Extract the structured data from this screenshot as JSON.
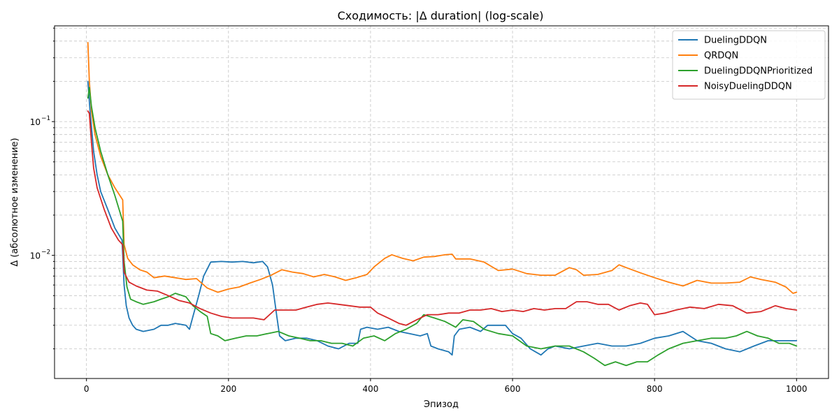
{
  "chart_data": {
    "type": "line",
    "title": "Сходимость: |Δ duration| (log-scale)",
    "xlabel": "Эпизод",
    "ylabel": "Δ (абсолютное изменение)",
    "xlim": [
      -45,
      1045
    ],
    "ylim": [
      0.0012,
      0.52
    ],
    "yscale": "log",
    "grid": true,
    "legend": "top-right",
    "x_ticks": [
      0,
      200,
      400,
      600,
      800,
      1000
    ],
    "y_major_ticks": [
      {
        "value": 0.1,
        "label": "10",
        "exp": "−1"
      },
      {
        "value": 0.01,
        "label": "10",
        "exp": "−2"
      }
    ],
    "y_minor_ticks": [
      0.002,
      0.003,
      0.004,
      0.005,
      0.006,
      0.007,
      0.008,
      0.009,
      0.02,
      0.03,
      0.04,
      0.05,
      0.06,
      0.07,
      0.08,
      0.09,
      0.2,
      0.3,
      0.4,
      0.5
    ],
    "series": [
      {
        "name": "DuelingDDQN",
        "color": "#1f77b4",
        "points": [
          [
            2,
            0.2
          ],
          [
            5,
            0.12
          ],
          [
            10,
            0.06
          ],
          [
            15,
            0.04
          ],
          [
            20,
            0.03
          ],
          [
            30,
            0.022
          ],
          [
            40,
            0.016
          ],
          [
            50,
            0.013
          ],
          [
            53,
            0.006
          ],
          [
            56,
            0.0042
          ],
          [
            60,
            0.0034
          ],
          [
            65,
            0.003
          ],
          [
            70,
            0.0028
          ],
          [
            80,
            0.0027
          ],
          [
            95,
            0.0028
          ],
          [
            105,
            0.003
          ],
          [
            115,
            0.003
          ],
          [
            125,
            0.0031
          ],
          [
            140,
            0.003
          ],
          [
            145,
            0.0028
          ],
          [
            150,
            0.0035
          ],
          [
            158,
            0.005
          ],
          [
            165,
            0.007
          ],
          [
            175,
            0.0089
          ],
          [
            190,
            0.009
          ],
          [
            205,
            0.0089
          ],
          [
            220,
            0.009
          ],
          [
            235,
            0.0088
          ],
          [
            248,
            0.009
          ],
          [
            255,
            0.0082
          ],
          [
            262,
            0.006
          ],
          [
            268,
            0.0035
          ],
          [
            272,
            0.0025
          ],
          [
            280,
            0.0023
          ],
          [
            295,
            0.0024
          ],
          [
            310,
            0.0024
          ],
          [
            325,
            0.0023
          ],
          [
            340,
            0.0021
          ],
          [
            355,
            0.002
          ],
          [
            370,
            0.0022
          ],
          [
            382,
            0.0022
          ],
          [
            386,
            0.0028
          ],
          [
            395,
            0.0029
          ],
          [
            410,
            0.0028
          ],
          [
            425,
            0.0029
          ],
          [
            440,
            0.0027
          ],
          [
            455,
            0.0026
          ],
          [
            470,
            0.0025
          ],
          [
            480,
            0.0026
          ],
          [
            485,
            0.0021
          ],
          [
            495,
            0.002
          ],
          [
            510,
            0.0019
          ],
          [
            515,
            0.0018
          ],
          [
            518,
            0.0025
          ],
          [
            525,
            0.0028
          ],
          [
            540,
            0.0029
          ],
          [
            555,
            0.0027
          ],
          [
            565,
            0.003
          ],
          [
            590,
            0.003
          ],
          [
            600,
            0.0026
          ],
          [
            612,
            0.0024
          ],
          [
            625,
            0.002
          ],
          [
            640,
            0.0018
          ],
          [
            650,
            0.002
          ],
          [
            660,
            0.0021
          ],
          [
            680,
            0.002
          ],
          [
            700,
            0.0021
          ],
          [
            720,
            0.0022
          ],
          [
            740,
            0.0021
          ],
          [
            760,
            0.0021
          ],
          [
            780,
            0.0022
          ],
          [
            800,
            0.0024
          ],
          [
            820,
            0.0025
          ],
          [
            840,
            0.0027
          ],
          [
            860,
            0.0023
          ],
          [
            880,
            0.0022
          ],
          [
            900,
            0.002
          ],
          [
            920,
            0.0019
          ],
          [
            940,
            0.0021
          ],
          [
            960,
            0.0023
          ],
          [
            980,
            0.0023
          ],
          [
            1000,
            0.0023
          ]
        ]
      },
      {
        "name": "QRDQN",
        "color": "#ff7f0e",
        "points": [
          [
            2,
            0.39
          ],
          [
            4,
            0.2
          ],
          [
            7,
            0.12
          ],
          [
            12,
            0.08
          ],
          [
            20,
            0.055
          ],
          [
            30,
            0.04
          ],
          [
            40,
            0.032
          ],
          [
            51,
            0.026
          ],
          [
            53,
            0.012
          ],
          [
            58,
            0.0095
          ],
          [
            65,
            0.0085
          ],
          [
            75,
            0.0078
          ],
          [
            85,
            0.0075
          ],
          [
            95,
            0.0068
          ],
          [
            110,
            0.007
          ],
          [
            125,
            0.0068
          ],
          [
            140,
            0.0066
          ],
          [
            155,
            0.0067
          ],
          [
            170,
            0.0057
          ],
          [
            185,
            0.0053
          ],
          [
            200,
            0.0056
          ],
          [
            215,
            0.0058
          ],
          [
            230,
            0.0062
          ],
          [
            245,
            0.0066
          ],
          [
            260,
            0.0071
          ],
          [
            275,
            0.0078
          ],
          [
            290,
            0.0075
          ],
          [
            305,
            0.0073
          ],
          [
            320,
            0.0069
          ],
          [
            335,
            0.0072
          ],
          [
            350,
            0.0069
          ],
          [
            365,
            0.0065
          ],
          [
            380,
            0.0068
          ],
          [
            395,
            0.0072
          ],
          [
            405,
            0.0082
          ],
          [
            420,
            0.0095
          ],
          [
            430,
            0.0101
          ],
          [
            445,
            0.0095
          ],
          [
            460,
            0.0091
          ],
          [
            475,
            0.0097
          ],
          [
            490,
            0.0098
          ],
          [
            505,
            0.0101
          ],
          [
            515,
            0.0102
          ],
          [
            520,
            0.0094
          ],
          [
            540,
            0.0094
          ],
          [
            560,
            0.0089
          ],
          [
            580,
            0.0077
          ],
          [
            600,
            0.0079
          ],
          [
            620,
            0.0073
          ],
          [
            640,
            0.0071
          ],
          [
            660,
            0.0071
          ],
          [
            680,
            0.0081
          ],
          [
            690,
            0.0078
          ],
          [
            700,
            0.0071
          ],
          [
            720,
            0.0072
          ],
          [
            740,
            0.0077
          ],
          [
            750,
            0.0085
          ],
          [
            760,
            0.0081
          ],
          [
            780,
            0.0074
          ],
          [
            800,
            0.0068
          ],
          [
            820,
            0.0063
          ],
          [
            840,
            0.0059
          ],
          [
            860,
            0.0065
          ],
          [
            880,
            0.0062
          ],
          [
            900,
            0.0062
          ],
          [
            920,
            0.0063
          ],
          [
            935,
            0.0069
          ],
          [
            950,
            0.0066
          ],
          [
            970,
            0.0063
          ],
          [
            985,
            0.0058
          ],
          [
            995,
            0.0052
          ],
          [
            1000,
            0.0053
          ]
        ]
      },
      {
        "name": "DuelingDDQNPrioritized",
        "color": "#2ca02c",
        "points": [
          [
            2,
            0.15
          ],
          [
            4,
            0.18
          ],
          [
            7,
            0.13
          ],
          [
            12,
            0.09
          ],
          [
            20,
            0.06
          ],
          [
            30,
            0.04
          ],
          [
            40,
            0.028
          ],
          [
            51,
            0.018
          ],
          [
            53,
            0.009
          ],
          [
            57,
            0.0058
          ],
          [
            62,
            0.0047
          ],
          [
            70,
            0.0045
          ],
          [
            80,
            0.0043
          ],
          [
            95,
            0.0045
          ],
          [
            105,
            0.0047
          ],
          [
            115,
            0.0049
          ],
          [
            125,
            0.0052
          ],
          [
            140,
            0.0049
          ],
          [
            150,
            0.0042
          ],
          [
            160,
            0.0038
          ],
          [
            170,
            0.0035
          ],
          [
            175,
            0.0026
          ],
          [
            185,
            0.0025
          ],
          [
            195,
            0.0023
          ],
          [
            210,
            0.0024
          ],
          [
            225,
            0.0025
          ],
          [
            240,
            0.0025
          ],
          [
            255,
            0.0026
          ],
          [
            270,
            0.0027
          ],
          [
            285,
            0.0025
          ],
          [
            300,
            0.0024
          ],
          [
            315,
            0.0023
          ],
          [
            330,
            0.0023
          ],
          [
            345,
            0.0022
          ],
          [
            360,
            0.0022
          ],
          [
            375,
            0.0021
          ],
          [
            390,
            0.0024
          ],
          [
            405,
            0.0025
          ],
          [
            420,
            0.0023
          ],
          [
            435,
            0.0026
          ],
          [
            450,
            0.0028
          ],
          [
            465,
            0.0031
          ],
          [
            475,
            0.0036
          ],
          [
            490,
            0.0034
          ],
          [
            505,
            0.0032
          ],
          [
            520,
            0.0029
          ],
          [
            530,
            0.0033
          ],
          [
            545,
            0.0032
          ],
          [
            560,
            0.0028
          ],
          [
            580,
            0.0026
          ],
          [
            600,
            0.0025
          ],
          [
            620,
            0.0021
          ],
          [
            640,
            0.002
          ],
          [
            660,
            0.0021
          ],
          [
            680,
            0.0021
          ],
          [
            700,
            0.0019
          ],
          [
            715,
            0.0017
          ],
          [
            730,
            0.0015
          ],
          [
            745,
            0.0016
          ],
          [
            760,
            0.0015
          ],
          [
            775,
            0.0016
          ],
          [
            790,
            0.0016
          ],
          [
            805,
            0.0018
          ],
          [
            820,
            0.002
          ],
          [
            840,
            0.0022
          ],
          [
            860,
            0.0023
          ],
          [
            880,
            0.0024
          ],
          [
            900,
            0.0024
          ],
          [
            915,
            0.0025
          ],
          [
            930,
            0.0027
          ],
          [
            945,
            0.0025
          ],
          [
            960,
            0.0024
          ],
          [
            975,
            0.0022
          ],
          [
            990,
            0.0022
          ],
          [
            1000,
            0.0021
          ]
        ]
      },
      {
        "name": "NoisyDuelingDDQN",
        "color": "#d62728",
        "points": [
          [
            2,
            0.12
          ],
          [
            4,
            0.115
          ],
          [
            7,
            0.07
          ],
          [
            10,
            0.045
          ],
          [
            15,
            0.032
          ],
          [
            25,
            0.022
          ],
          [
            35,
            0.016
          ],
          [
            45,
            0.013
          ],
          [
            51,
            0.012
          ],
          [
            53,
            0.0075
          ],
          [
            60,
            0.0063
          ],
          [
            70,
            0.0059
          ],
          [
            85,
            0.0055
          ],
          [
            100,
            0.0054
          ],
          [
            115,
            0.005
          ],
          [
            130,
            0.0046
          ],
          [
            145,
            0.0044
          ],
          [
            160,
            0.004
          ],
          [
            175,
            0.0037
          ],
          [
            190,
            0.0035
          ],
          [
            205,
            0.0034
          ],
          [
            220,
            0.0034
          ],
          [
            235,
            0.0034
          ],
          [
            250,
            0.0033
          ],
          [
            265,
            0.0039
          ],
          [
            280,
            0.0039
          ],
          [
            295,
            0.0039
          ],
          [
            310,
            0.0041
          ],
          [
            325,
            0.0043
          ],
          [
            340,
            0.0044
          ],
          [
            355,
            0.0043
          ],
          [
            370,
            0.0042
          ],
          [
            385,
            0.0041
          ],
          [
            400,
            0.0041
          ],
          [
            410,
            0.0037
          ],
          [
            425,
            0.0034
          ],
          [
            440,
            0.0031
          ],
          [
            450,
            0.003
          ],
          [
            465,
            0.0033
          ],
          [
            480,
            0.0036
          ],
          [
            495,
            0.0036
          ],
          [
            510,
            0.0037
          ],
          [
            525,
            0.0037
          ],
          [
            540,
            0.0039
          ],
          [
            555,
            0.0039
          ],
          [
            570,
            0.004
          ],
          [
            585,
            0.0038
          ],
          [
            600,
            0.0039
          ],
          [
            615,
            0.0038
          ],
          [
            630,
            0.004
          ],
          [
            645,
            0.0039
          ],
          [
            660,
            0.004
          ],
          [
            675,
            0.004
          ],
          [
            690,
            0.0045
          ],
          [
            705,
            0.0045
          ],
          [
            720,
            0.0043
          ],
          [
            735,
            0.0043
          ],
          [
            750,
            0.0039
          ],
          [
            765,
            0.0042
          ],
          [
            780,
            0.0044
          ],
          [
            790,
            0.0043
          ],
          [
            800,
            0.0036
          ],
          [
            815,
            0.0037
          ],
          [
            830,
            0.0039
          ],
          [
            850,
            0.0041
          ],
          [
            870,
            0.004
          ],
          [
            890,
            0.0043
          ],
          [
            910,
            0.0042
          ],
          [
            930,
            0.0037
          ],
          [
            950,
            0.0038
          ],
          [
            970,
            0.0042
          ],
          [
            985,
            0.004
          ],
          [
            1000,
            0.0039
          ]
        ]
      }
    ]
  }
}
